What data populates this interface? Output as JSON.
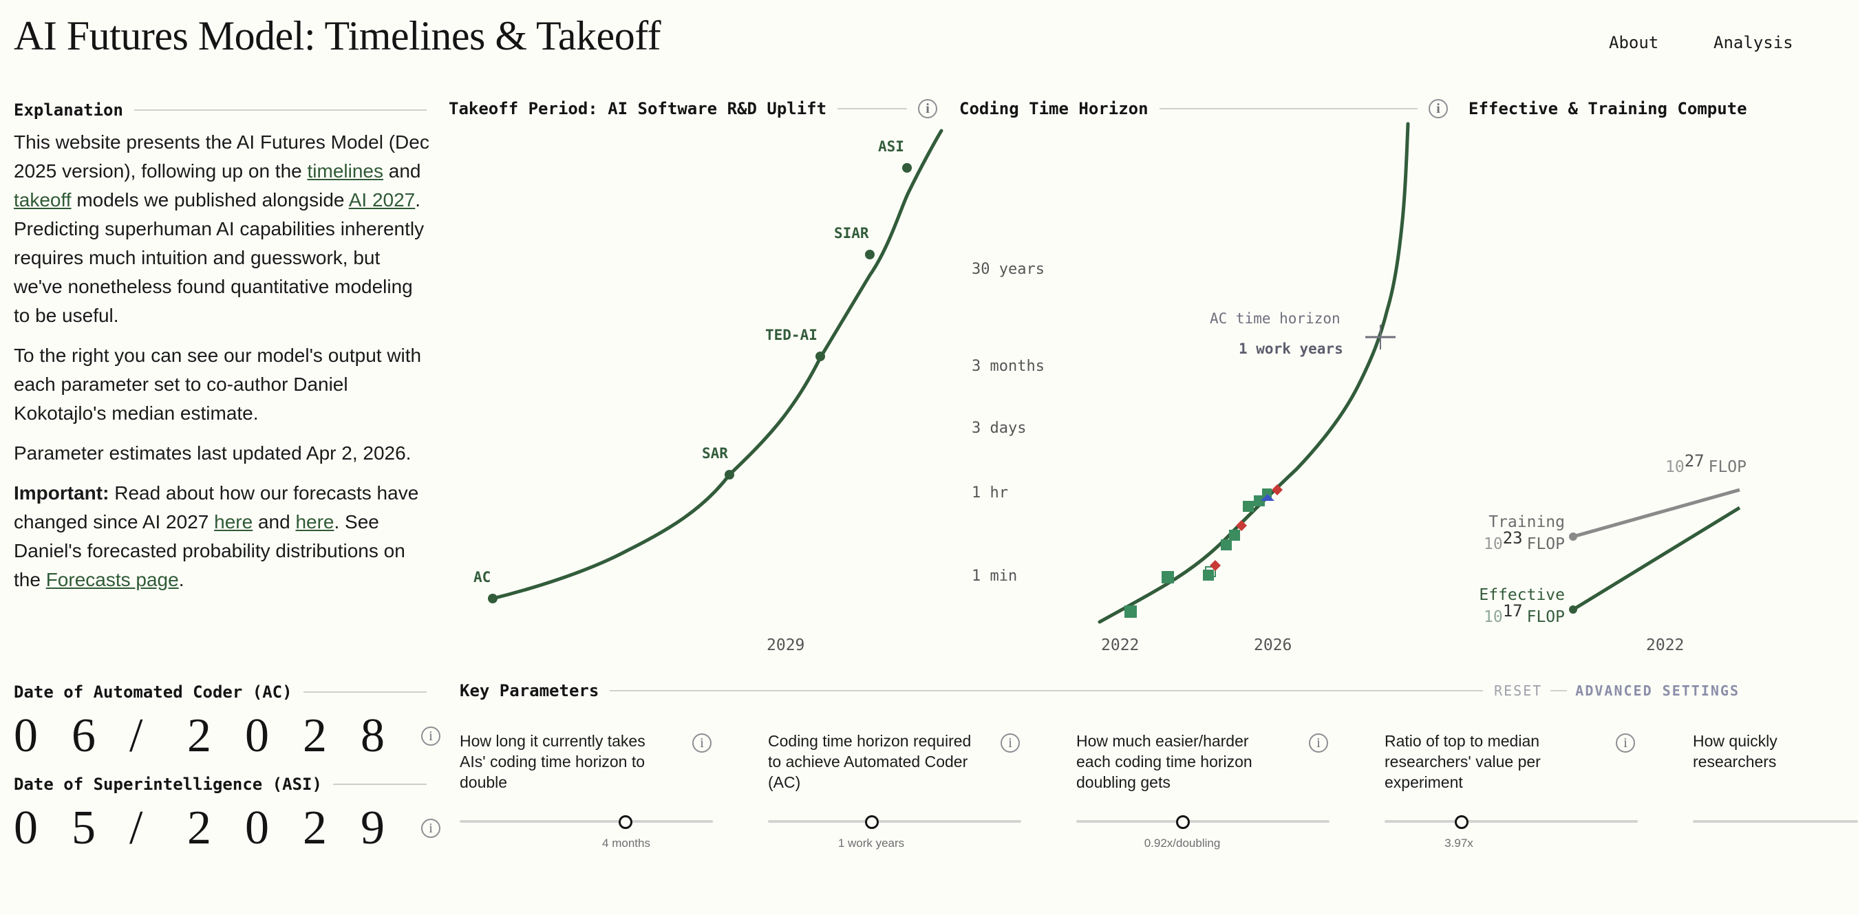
{
  "header": {
    "title": "AI Futures Model: Timelines & Takeoff",
    "nav": [
      {
        "label": "About"
      },
      {
        "label": "Analysis"
      }
    ]
  },
  "explanation": {
    "heading": "Explanation",
    "p1_a": "This website presents the AI Futures Model (Dec 2025 version), following up on the ",
    "link_timelines": "timelines",
    "p1_b": " and ",
    "link_takeoff": "takeoff",
    "p1_c": " models we published alongside ",
    "link_ai2027": "AI 2027",
    "p1_d": ". Predicting superhuman AI capabilities inherently requires much intuition and guesswork, but we've nonetheless found quantitative modeling to be useful.",
    "p2": "To the right you can see our model's output with each parameter set to co-author Daniel Kokotajlo's median estimate.",
    "p3": "Parameter estimates last updated Apr 2, 2026.",
    "p4_strong": "Important:",
    "p4_a": " Read about how our forecasts have changed since AI 2027 ",
    "link_here1": "here",
    "p4_b": " and ",
    "link_here2": "here",
    "p4_c": ". See Daniel's forecasted probability distributions on the ",
    "link_forecasts": "Forecasts page",
    "p4_d": "."
  },
  "dates": {
    "ac_label": "Date of Automated Coder (AC)",
    "ac_digits": [
      "0",
      "6",
      "/",
      "2",
      "0",
      "2",
      "8"
    ],
    "asi_label": "Date of Superintelligence (ASI)",
    "asi_digits": [
      "0",
      "5",
      "/",
      "2",
      "0",
      "2",
      "9"
    ]
  },
  "charts": {
    "takeoff": {
      "title": "Takeoff Period: AI Software R&D Uplift",
      "x_tick": "2029",
      "milestones": [
        {
          "label": "AC"
        },
        {
          "label": "SAR"
        },
        {
          "label": "TED-AI"
        },
        {
          "label": "SIAR"
        },
        {
          "label": "ASI"
        }
      ]
    },
    "horizon": {
      "title": "Coding Time Horizon",
      "y_ticks": [
        "30 years",
        "3 months",
        "3 days",
        "1 hr",
        "1 min"
      ],
      "x_ticks": [
        "2022",
        "2026"
      ],
      "annotation_label": "AC time horizon",
      "annotation_value": "1 work years"
    },
    "compute": {
      "title": "Effective & Training Compute",
      "label_training": "Training",
      "label_effective": "Effective",
      "exp_23": "23",
      "exp_17": "17",
      "exp_27": "27",
      "base_10": "10",
      "unit_flop": "FLOP",
      "x_tick": "2022"
    }
  },
  "chart_data": [
    {
      "type": "line",
      "title": "Takeoff Period: AI Software R&D Uplift",
      "x_ticks": [
        "2029"
      ],
      "series": [
        {
          "points": [
            "AC",
            "SAR",
            "TED-AI",
            "SIAR",
            "ASI"
          ]
        }
      ],
      "milestones": [
        "AC",
        "SAR",
        "TED-AI",
        "SIAR",
        "ASI"
      ],
      "grid": false
    },
    {
      "type": "line",
      "title": "Coding Time Horizon",
      "y_scale": "log",
      "y_ticks": [
        "1 min",
        "1 hr",
        "3 days",
        "3 months",
        "30 years"
      ],
      "x_ticks": [
        "2022",
        "2026"
      ],
      "annotations": [
        {
          "text": "AC time horizon",
          "value": "1 work years"
        }
      ],
      "grid": false
    },
    {
      "type": "line",
      "title": "Effective & Training Compute",
      "series": [
        {
          "name": "Training",
          "start": "10^23 FLOP"
        },
        {
          "name": "Effective",
          "start": "10^17 FLOP"
        }
      ],
      "y_tick": "10^27 FLOP",
      "x_ticks": [
        "2022"
      ],
      "grid": false
    }
  ],
  "params": {
    "heading": "Key Parameters",
    "reset": "RESET",
    "advanced": "ADVANCED SETTINGS",
    "items": [
      {
        "label": "How long it currently takes AIs' coding time horizon to double",
        "value": "4 months",
        "pos": 0.66
      },
      {
        "label": "Coding time horizon required to achieve Automated Coder (AC)",
        "value": "1 work years",
        "pos": 0.41
      },
      {
        "label": "How much easier/harder each coding time horizon doubling gets",
        "value": "0.92x/doubling",
        "pos": 0.42
      },
      {
        "label": "Ratio of top to median researchers' value per experiment",
        "value": "3.97x",
        "pos": 0.31
      },
      {
        "label": "How quickly researchers",
        "value": "",
        "pos": 0.5
      }
    ]
  },
  "colors": {
    "accent": "#325c3a",
    "marker_green": "#3b8c5f",
    "marker_red": "#c83a36",
    "marker_blue": "#3b55c6",
    "gray_line": "#8a8a8a"
  }
}
